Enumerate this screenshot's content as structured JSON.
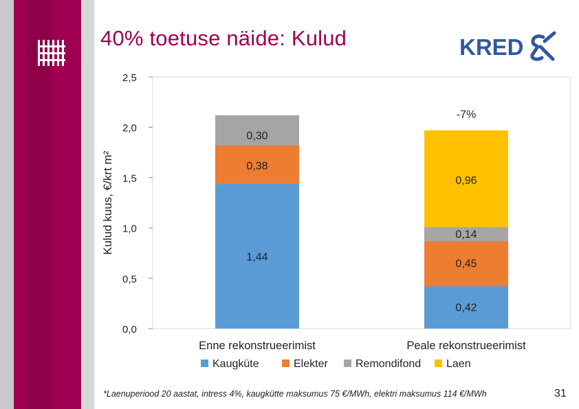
{
  "slide": {
    "title": "40% toetuse näide: Kulud",
    "footnote": "*Laenuperiood 20 aastat, intress 4%, kaugkütte maksumus 75 €/MWh, elektri maksumus 114 €/MWh",
    "page_number": "31"
  },
  "logo": {
    "text": "KRED",
    "mark": "X"
  },
  "colors": {
    "accent": "#a00052",
    "kaugkute": "#5b9bd5",
    "elekter": "#ed7d31",
    "remondifond": "#a5a5a5",
    "laen": "#ffc000"
  },
  "chart_data": {
    "type": "bar",
    "stacked": true,
    "categories": [
      "Enne rekonstrueerimist",
      "Peale rekonstrueerimist"
    ],
    "series": [
      {
        "name": "Kaugküte",
        "values": [
          1.44,
          0.42
        ],
        "labels": [
          "1,44",
          "0,42"
        ],
        "color": "#5b9bd5"
      },
      {
        "name": "Elekter",
        "values": [
          0.38,
          0.45
        ],
        "labels": [
          "0,38",
          "0,45"
        ],
        "color": "#ed7d31"
      },
      {
        "name": "Remondifond",
        "values": [
          0.3,
          0.14
        ],
        "labels": [
          "0,30",
          "0,14"
        ],
        "color": "#a5a5a5"
      },
      {
        "name": "Laen",
        "values": [
          0,
          0.96
        ],
        "labels": [
          "",
          "0,96"
        ],
        "color": "#ffc000"
      }
    ],
    "ylabel": "Kulud kuus, €/krt m²",
    "ylim": [
      0,
      2.5
    ],
    "yticks": [
      0,
      0.5,
      1.0,
      1.5,
      2.0,
      2.5
    ],
    "ytick_labels": [
      "0,0",
      "0,5",
      "1,0",
      "1,5",
      "2,0",
      "2,5"
    ],
    "annotations": [
      {
        "category": "Peale rekonstrueerimist",
        "text": "-7%"
      }
    ],
    "legend_position": "bottom",
    "grid": false
  }
}
